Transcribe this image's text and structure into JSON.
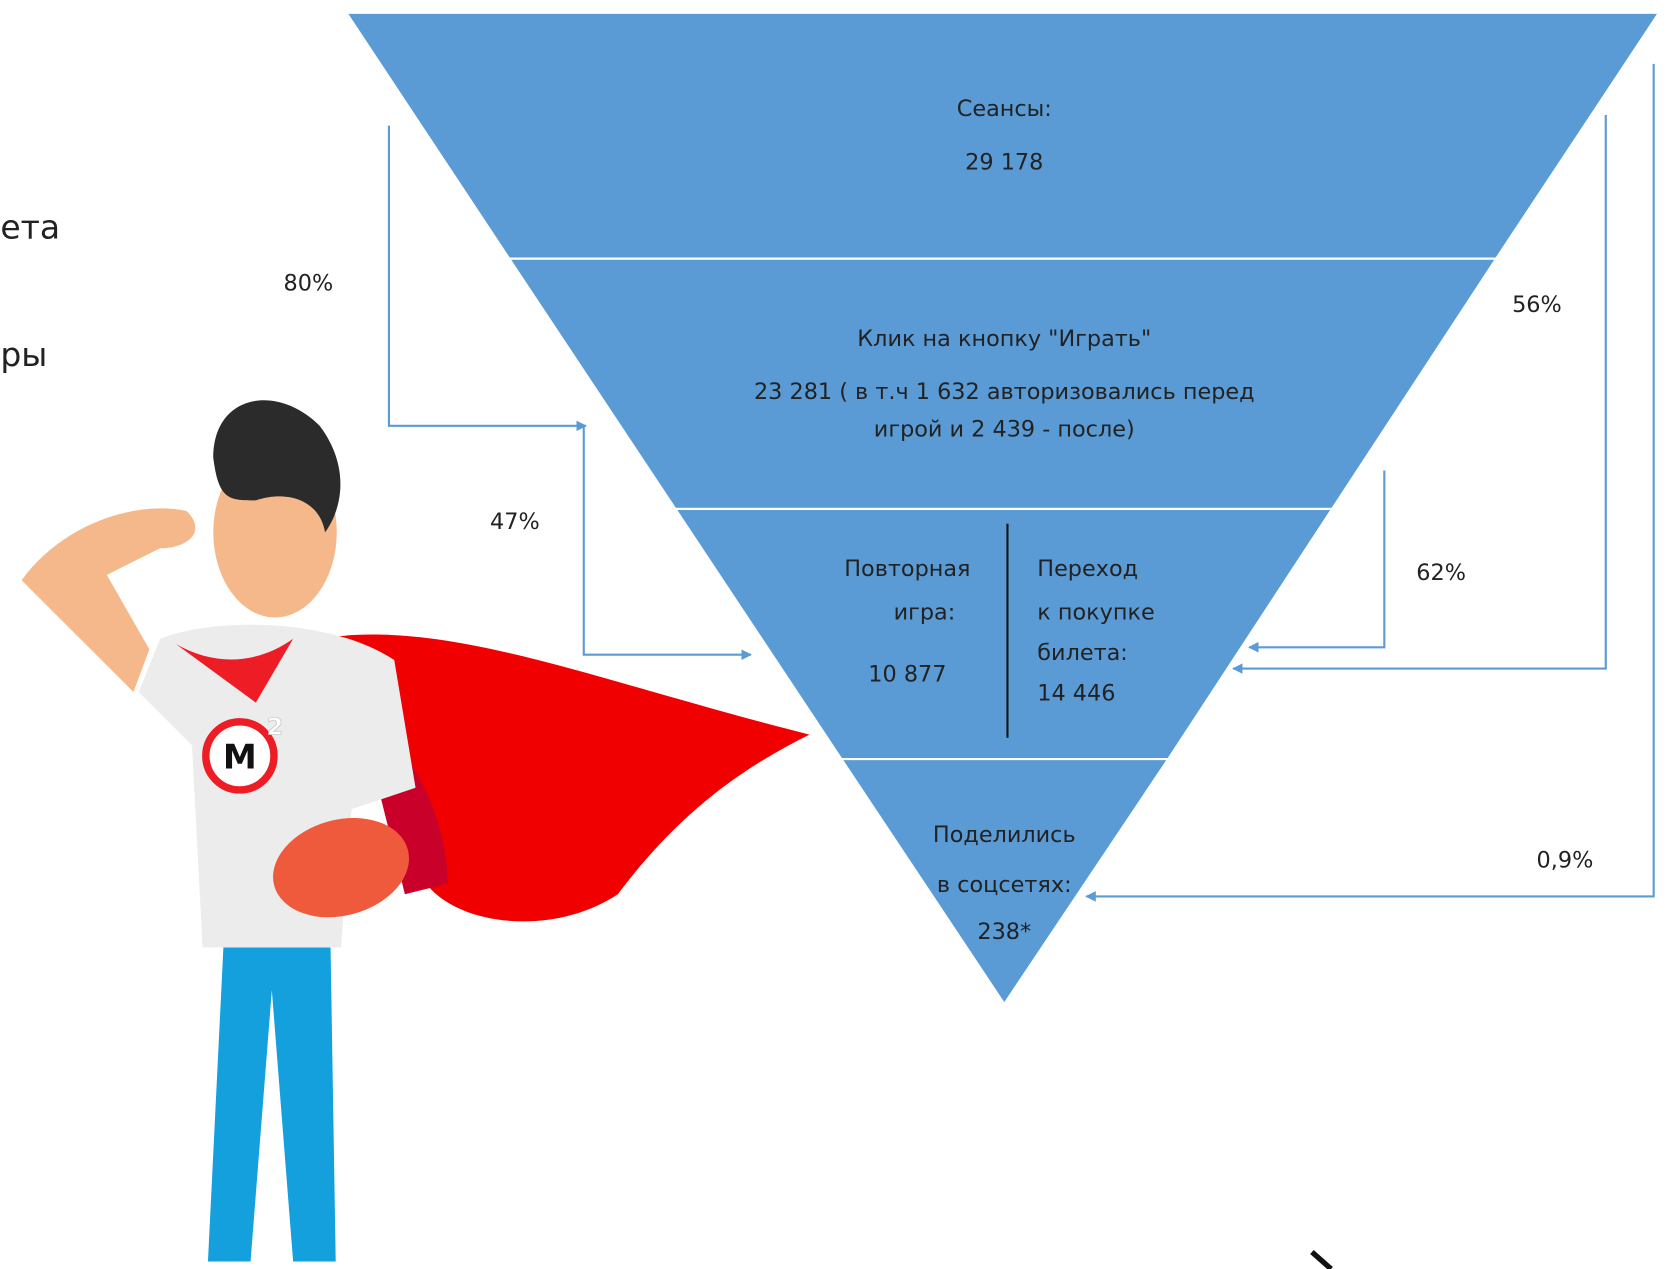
{
  "side_text": [
    "ета",
    "ры"
  ],
  "funnel": {
    "stages": [
      {
        "label": "Сеансы:",
        "value": "29 178"
      },
      {
        "label": "Клик на кнопку \"Играть\"",
        "value_lines": [
          "23 281 ( в т.ч 1 632 авторизовались перед",
          "игрой и 2 439 - после)"
        ]
      },
      {
        "left": [
          "Повторная",
          "игра:",
          "10 877"
        ],
        "right": [
          "Переход",
          "к покупке",
          "билета:",
          "14 446"
        ]
      },
      {
        "lines": [
          "Поделились",
          "в соцсетях:",
          "238*"
        ]
      }
    ]
  },
  "conversions": [
    "80%",
    "56%",
    "47%",
    "62%",
    "0,9%"
  ],
  "mascot": {
    "logo": "M",
    "logo_superscript": "2"
  }
}
